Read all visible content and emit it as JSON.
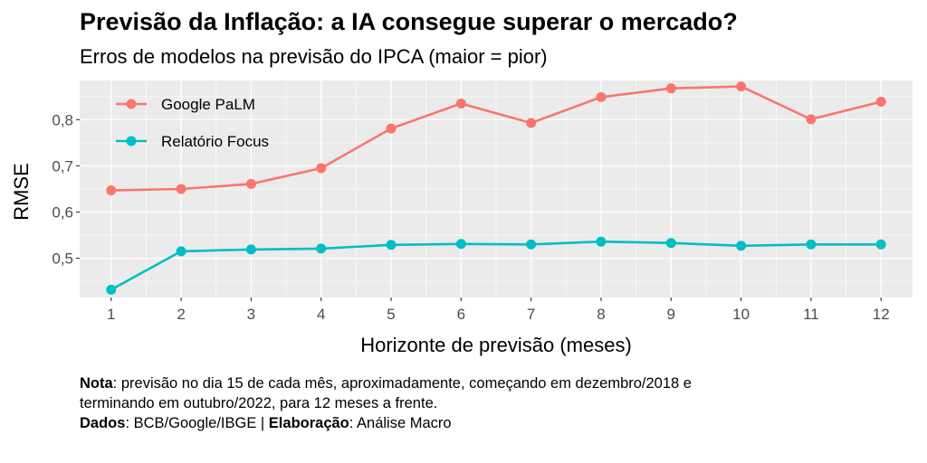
{
  "title": "Previsão da Inflação: a IA consegue superar o mercado?",
  "subtitle": "Erros de modelos na previsão do IPCA (maior = pior)",
  "caption": {
    "nota_label": "Nota",
    "nota_text": ": previsão no dia 15 de cada mês, aproximadamente, começando em dezembro/2018 e",
    "nota_text2": "terminando em outubro/2022, para 12 meses a frente.",
    "dados_label": "Dados",
    "dados_text": ": BCB/Google/IBGE | ",
    "elab_label": "Elaboração",
    "elab_text": ": Análise Macro"
  },
  "chart_data": {
    "type": "line",
    "xlabel": "Horizonte de previsão (meses)",
    "ylabel": "RMSE",
    "x": [
      1,
      2,
      3,
      4,
      5,
      6,
      7,
      8,
      9,
      10,
      11,
      12
    ],
    "xlim": [
      0.55,
      12.45
    ],
    "ylim": [
      0.415,
      0.885
    ],
    "yticks": [
      0.5,
      0.6,
      0.7,
      0.8
    ],
    "ytick_labels": [
      "0,5",
      "0,6",
      "0,7",
      "0,8"
    ],
    "grid": true,
    "legend_position": "top-left",
    "series": [
      {
        "name": "Google PaLM",
        "color": "#F8766D",
        "values": [
          0.647,
          0.65,
          0.661,
          0.695,
          0.781,
          0.835,
          0.793,
          0.849,
          0.868,
          0.872,
          0.801,
          0.839
        ]
      },
      {
        "name": "Relatório Focus",
        "color": "#00BFC4",
        "values": [
          0.432,
          0.515,
          0.519,
          0.521,
          0.529,
          0.531,
          0.53,
          0.536,
          0.533,
          0.527,
          0.53,
          0.53
        ]
      }
    ]
  }
}
